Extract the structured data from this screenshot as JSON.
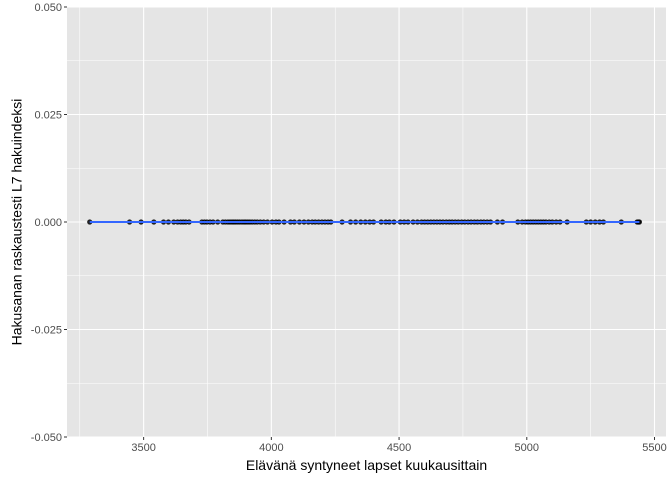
{
  "chart_data": {
    "type": "scatter",
    "title": "",
    "xlabel": "Elävänä syntyneet lapset kuukausittain",
    "ylabel": "Hakusanan raskaustesti L7 hakuindeksi",
    "xlim": [
      3200,
      5545
    ],
    "ylim": [
      -0.05,
      0.05
    ],
    "x_ticks": [
      3500,
      4000,
      4500,
      5000,
      5500
    ],
    "y_ticks": [
      -0.05,
      -0.025,
      0.0,
      0.025,
      0.05
    ],
    "x_tick_labels": [
      "3500",
      "4000",
      "4500",
      "5000",
      "5500"
    ],
    "y_tick_labels": [
      "-0.050",
      "-0.025",
      "0.000",
      "0.025",
      "0.050"
    ],
    "grid": true,
    "background": "#e5e5e5",
    "grid_color": "#ffffff",
    "point_color": "#000000",
    "trend_line": {
      "type": "linear",
      "color": "#3366ff",
      "values": [
        0.0,
        0.0
      ]
    },
    "series": [
      {
        "x": [
          3289,
          3445,
          3490,
          3540,
          3578,
          3597,
          3618,
          3633,
          3645,
          3655,
          3665,
          3678,
          3728,
          3738,
          3748,
          3760,
          3772,
          3790,
          3810,
          3820,
          3830,
          3838,
          3846,
          3853,
          3860,
          3868,
          3876,
          3885,
          3893,
          3900,
          3908,
          3916,
          3925,
          3935,
          3945,
          3957,
          3970,
          3985,
          4003,
          4018,
          4030,
          4050,
          4075,
          4090,
          4110,
          4128,
          4145,
          4160,
          4172,
          4185,
          4198,
          4210,
          4222,
          4233,
          4277,
          4310,
          4330,
          4350,
          4368,
          4385,
          4400,
          4430,
          4448,
          4462,
          4480,
          4505,
          4520,
          4535,
          4555,
          4572,
          4588,
          4600,
          4612,
          4624,
          4636,
          4648,
          4660,
          4672,
          4685,
          4697,
          4708,
          4720,
          4732,
          4745,
          4757,
          4770,
          4782,
          4795,
          4807,
          4820,
          4832,
          4845,
          4858,
          4885,
          4905,
          4965,
          4982,
          4995,
          5005,
          5015,
          5025,
          5035,
          5045,
          5055,
          5065,
          5075,
          5088,
          5100,
          5115,
          5130,
          5158,
          5233,
          5250,
          5268,
          5285,
          5300,
          5370,
          5432,
          5437,
          5441
        ],
        "y": [
          0.0,
          0.0,
          0.0,
          0.0,
          0.0,
          0.0,
          0.0,
          0.0,
          0.0,
          0.0,
          0.0,
          0.0,
          0.0,
          0.0,
          0.0,
          0.0,
          0.0,
          0.0,
          0.0,
          0.0,
          0.0,
          0.0,
          0.0,
          0.0,
          0.0,
          0.0,
          0.0,
          0.0,
          0.0,
          0.0,
          0.0,
          0.0,
          0.0,
          0.0,
          0.0,
          0.0,
          0.0,
          0.0,
          0.0,
          0.0,
          0.0,
          0.0,
          0.0,
          0.0,
          0.0,
          0.0,
          0.0,
          0.0,
          0.0,
          0.0,
          0.0,
          0.0,
          0.0,
          0.0,
          0.0,
          0.0,
          0.0,
          0.0,
          0.0,
          0.0,
          0.0,
          0.0,
          0.0,
          0.0,
          0.0,
          0.0,
          0.0,
          0.0,
          0.0,
          0.0,
          0.0,
          0.0,
          0.0,
          0.0,
          0.0,
          0.0,
          0.0,
          0.0,
          0.0,
          0.0,
          0.0,
          0.0,
          0.0,
          0.0,
          0.0,
          0.0,
          0.0,
          0.0,
          0.0,
          0.0,
          0.0,
          0.0,
          0.0,
          0.0,
          0.0,
          0.0,
          0.0,
          0.0,
          0.0,
          0.0,
          0.0,
          0.0,
          0.0,
          0.0,
          0.0,
          0.0,
          0.0,
          0.0,
          0.0,
          0.0,
          0.0,
          0.0,
          0.0,
          0.0,
          0.0,
          0.0,
          0.0,
          0.0,
          0.0,
          0.0
        ]
      }
    ]
  }
}
